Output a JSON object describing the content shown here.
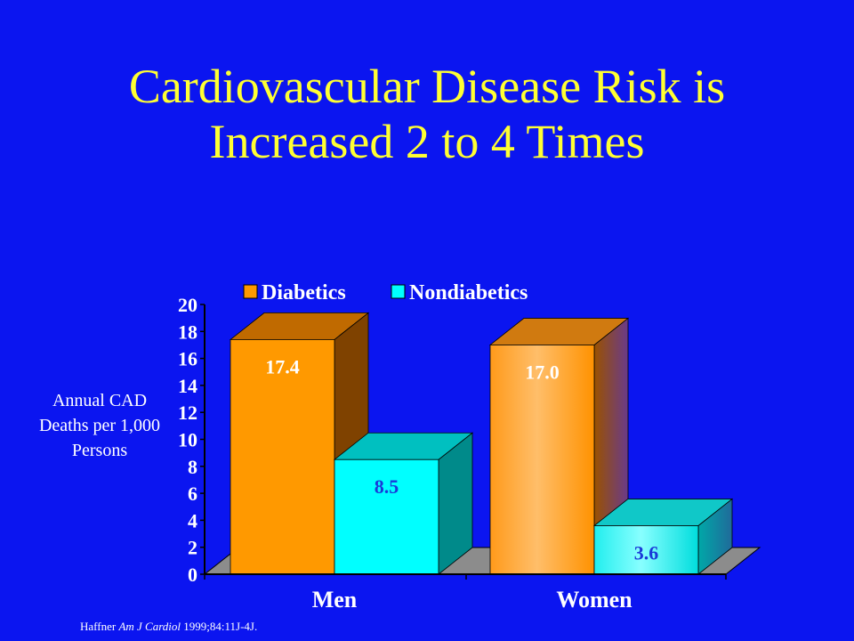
{
  "title_lines": [
    "Cardiovascular Disease Risk is",
    "Increased 2 to 4 Times"
  ],
  "footnote": {
    "author": "Haffner ",
    "journal": "Am J Cardiol",
    "rest": " 1999;84:11J-4J."
  },
  "colors": {
    "background": "#0b15f0",
    "title": "#ffff33",
    "diabetics": "#ff9900",
    "nondiabetics": "#00ffff"
  },
  "chart_data": {
    "type": "bar",
    "title": "",
    "ylabel_lines": [
      "Annual CAD",
      "Deaths per 1,000",
      "Persons"
    ],
    "xlabel": "",
    "categories": [
      "Men",
      "Women"
    ],
    "series": [
      {
        "name": "Diabetics",
        "values": [
          17.4,
          17.0
        ],
        "labels": [
          "17.4",
          "17.0"
        ]
      },
      {
        "name": "Nondiabetics",
        "values": [
          8.5,
          3.6
        ],
        "labels": [
          "8.5",
          "3.6"
        ]
      }
    ],
    "ylim": [
      0,
      20
    ],
    "yticks": [
      0,
      2,
      4,
      6,
      8,
      10,
      12,
      14,
      16,
      18,
      20
    ],
    "legend_position": "top",
    "grid": false,
    "style": "3d"
  }
}
